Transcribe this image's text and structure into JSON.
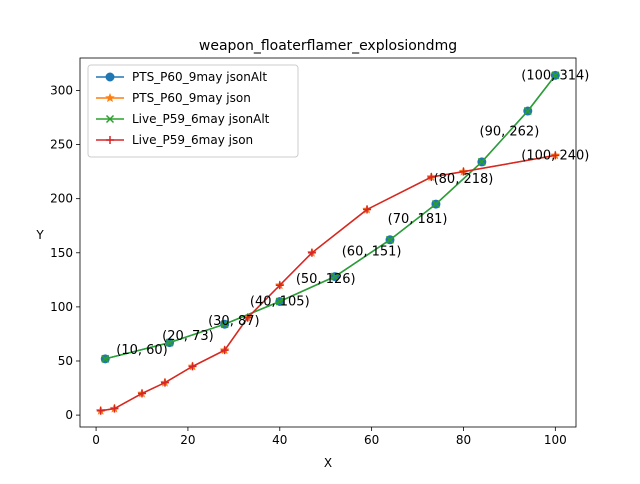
{
  "chart_data": {
    "type": "line",
    "title": "weapon_floaterflamer_explosiondmg",
    "xlabel": "X",
    "ylabel": "Y",
    "xlim": [
      -3.5,
      104.5
    ],
    "ylim": [
      -11,
      330
    ],
    "xticks": [
      0,
      20,
      40,
      60,
      80,
      100
    ],
    "yticks": [
      0,
      50,
      100,
      150,
      200,
      250,
      300
    ],
    "legend_position": "upper left",
    "series": [
      {
        "name": "PTS_P60_9may jsonAlt",
        "color": "#1f77b4",
        "marker": "circle",
        "x": [
          2,
          16,
          28,
          40,
          52,
          64,
          74,
          84,
          94,
          100
        ],
        "y": [
          52,
          67,
          84,
          105,
          128,
          162,
          195,
          234,
          281,
          314
        ]
      },
      {
        "name": "PTS_P60_9may json",
        "color": "#ff7f0e",
        "marker": "star",
        "x": [
          1,
          4,
          10,
          15,
          21,
          28,
          33,
          40,
          47,
          59,
          73,
          80,
          100
        ],
        "y": [
          4,
          6,
          20,
          30,
          45,
          60,
          90,
          120,
          150,
          190,
          220,
          225,
          240
        ]
      },
      {
        "name": "Live_P59_6may jsonAlt",
        "color": "#2ca02c",
        "marker": "x",
        "x": [
          2,
          16,
          28,
          40,
          52,
          64,
          74,
          84,
          94,
          100
        ],
        "y": [
          52,
          67,
          84,
          105,
          128,
          162,
          195,
          234,
          281,
          314
        ]
      },
      {
        "name": "Live_P59_6may json",
        "color": "#d62728",
        "marker": "plus",
        "x": [
          1,
          4,
          10,
          15,
          21,
          28,
          33,
          40,
          47,
          59,
          73,
          80,
          100
        ],
        "y": [
          4,
          6,
          20,
          30,
          45,
          60,
          90,
          120,
          150,
          190,
          220,
          225,
          240
        ]
      }
    ],
    "annotations": [
      {
        "text": "(10, 60)",
        "x": 10,
        "y": 60
      },
      {
        "text": "(20, 73)",
        "x": 20,
        "y": 73
      },
      {
        "text": "(30, 87)",
        "x": 30,
        "y": 87
      },
      {
        "text": "(40, 105)",
        "x": 40,
        "y": 105
      },
      {
        "text": "(50, 126)",
        "x": 50,
        "y": 126
      },
      {
        "text": "(60, 151)",
        "x": 60,
        "y": 151
      },
      {
        "text": "(70, 181)",
        "x": 70,
        "y": 181
      },
      {
        "text": "(80, 218)",
        "x": 80,
        "y": 218
      },
      {
        "text": "(90, 262)",
        "x": 90,
        "y": 262
      },
      {
        "text": "(100, 314)",
        "x": 100,
        "y": 314
      },
      {
        "text": "(100, 240)",
        "x": 100,
        "y": 240
      }
    ]
  }
}
